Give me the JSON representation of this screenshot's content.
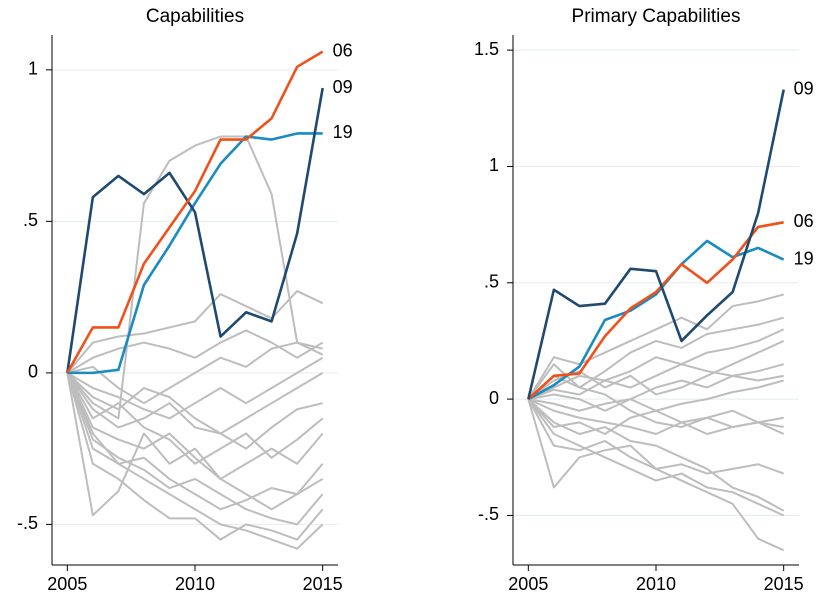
{
  "chart_data": [
    {
      "type": "line",
      "title": "Capabilities",
      "x": [
        2005,
        2006,
        2007,
        2008,
        2009,
        2010,
        2011,
        2012,
        2013,
        2014,
        2015
      ],
      "xlim": [
        2004.4,
        2015.6
      ],
      "xticks": [
        2005,
        2010,
        2015
      ],
      "ylim": [
        -0.634,
        1.115
      ],
      "yticks": [
        {
          "value": -0.5,
          "label": "-.5"
        },
        0,
        {
          "value": 0.5,
          "label": ".5"
        },
        1
      ],
      "grid": true,
      "series": [
        {
          "color": "#bdbdbd",
          "values": [
            0,
            -0.47,
            -0.39,
            -0.2,
            -0.3,
            -0.25,
            -0.35,
            -0.4,
            -0.45,
            -0.4,
            -0.35
          ]
        },
        {
          "color": "#bdbdbd",
          "values": [
            0,
            -0.1,
            -0.15,
            0.56,
            0.7,
            0.75,
            0.78,
            0.78,
            0.59,
            0.1,
            0.06
          ]
        },
        {
          "color": "#bdbdbd",
          "values": [
            0,
            0.1,
            0.12,
            0.13,
            0.15,
            0.17,
            0.26,
            0.22,
            0.18,
            0.27,
            0.23
          ]
        },
        {
          "color": "#bdbdbd",
          "values": [
            0,
            -0.2,
            -0.3,
            -0.35,
            -0.4,
            -0.45,
            -0.5,
            -0.52,
            -0.55,
            -0.58,
            -0.5
          ]
        },
        {
          "color": "#bdbdbd",
          "values": [
            0,
            -0.15,
            -0.1,
            -0.18,
            -0.22,
            -0.3,
            -0.25,
            -0.2,
            -0.28,
            -0.22,
            -0.15
          ]
        },
        {
          "color": "#bdbdbd",
          "values": [
            0,
            0.05,
            0.08,
            0.1,
            0.08,
            0.05,
            0.1,
            0.14,
            0.1,
            0.05,
            0.1
          ]
        },
        {
          "color": "#bdbdbd",
          "values": [
            0,
            -0.05,
            -0.08,
            -0.12,
            -0.15,
            -0.1,
            -0.05,
            -0.1,
            -0.05,
            0,
            0.05
          ]
        },
        {
          "color": "#bdbdbd",
          "values": [
            0,
            -0.25,
            -0.3,
            -0.28,
            -0.35,
            -0.4,
            -0.45,
            -0.42,
            -0.38,
            -0.4,
            -0.3
          ]
        },
        {
          "color": "#bdbdbd",
          "values": [
            0,
            -0.12,
            -0.18,
            -0.15,
            -0.1,
            -0.18,
            -0.2,
            -0.15,
            -0.1,
            -0.05,
            0
          ]
        },
        {
          "color": "#bdbdbd",
          "values": [
            0,
            -0.3,
            -0.35,
            -0.42,
            -0.48,
            -0.48,
            -0.55,
            -0.5,
            -0.52,
            -0.55,
            -0.45
          ]
        },
        {
          "color": "#bdbdbd",
          "values": [
            0,
            0.02,
            -0.05,
            -0.1,
            -0.05,
            0,
            0.05,
            0.02,
            0.08,
            0.1,
            0.08
          ]
        },
        {
          "color": "#bdbdbd",
          "values": [
            0,
            -0.18,
            -0.22,
            -0.25,
            -0.2,
            -0.28,
            -0.35,
            -0.3,
            -0.25,
            -0.3,
            -0.2
          ]
        },
        {
          "color": "#bdbdbd",
          "values": [
            0,
            -0.08,
            -0.12,
            -0.05,
            -0.08,
            -0.15,
            -0.2,
            -0.25,
            -0.18,
            -0.12,
            -0.1
          ]
        },
        {
          "color": "#bdbdbd",
          "values": [
            0,
            -0.22,
            -0.28,
            -0.32,
            -0.38,
            -0.35,
            -0.4,
            -0.45,
            -0.48,
            -0.5,
            -0.4
          ]
        },
        {
          "name": "19",
          "color": "#1a8cbf",
          "values": [
            0,
            0,
            0.01,
            0.29,
            0.42,
            0.56,
            0.69,
            0.78,
            0.77,
            0.79,
            0.79
          ]
        },
        {
          "name": "09",
          "color": "#1f4a70",
          "values": [
            0,
            0.58,
            0.65,
            0.59,
            0.66,
            0.53,
            0.12,
            0.2,
            0.17,
            0.46,
            0.94
          ]
        },
        {
          "name": "06",
          "color": "#f0511b",
          "values": [
            0,
            0.15,
            0.15,
            0.36,
            0.48,
            0.6,
            0.77,
            0.77,
            0.84,
            1.01,
            1.06
          ]
        }
      ]
    },
    {
      "type": "line",
      "title": "Primary Capabilities",
      "x": [
        2005,
        2006,
        2007,
        2008,
        2009,
        2010,
        2011,
        2012,
        2013,
        2014,
        2015
      ],
      "xlim": [
        2004.4,
        2015.6
      ],
      "xticks": [
        2005,
        2010,
        2015
      ],
      "ylim": [
        -0.713,
        1.565
      ],
      "yticks": [
        {
          "value": -0.5,
          "label": "-.5"
        },
        0,
        {
          "value": 0.5,
          "label": ".5"
        },
        1,
        1.5
      ],
      "grid": true,
      "series": [
        {
          "color": "#bdbdbd",
          "values": [
            0,
            -0.38,
            -0.25,
            -0.22,
            -0.2,
            -0.3,
            -0.35,
            -0.4,
            -0.45,
            -0.6,
            -0.65
          ]
        },
        {
          "color": "#bdbdbd",
          "values": [
            0,
            0.18,
            0.15,
            0.2,
            0.25,
            0.3,
            0.35,
            0.3,
            0.4,
            0.42,
            0.45
          ]
        },
        {
          "color": "#bdbdbd",
          "values": [
            0,
            -0.1,
            -0.15,
            -0.12,
            -0.18,
            -0.2,
            -0.25,
            -0.3,
            -0.38,
            -0.42,
            -0.48
          ]
        },
        {
          "color": "#bdbdbd",
          "values": [
            0,
            0.05,
            0.1,
            0.08,
            0.05,
            0.1,
            0.15,
            0.12,
            0.1,
            0.08,
            0.1
          ]
        },
        {
          "color": "#bdbdbd",
          "values": [
            0,
            -0.05,
            -0.08,
            -0.1,
            -0.12,
            -0.15,
            -0.1,
            -0.08,
            -0.12,
            -0.1,
            -0.12
          ]
        },
        {
          "color": "#bdbdbd",
          "values": [
            0,
            0.1,
            0.05,
            0.12,
            0.2,
            0.25,
            0.22,
            0.28,
            0.3,
            0.32,
            0.35
          ]
        },
        {
          "color": "#bdbdbd",
          "values": [
            0,
            -0.2,
            -0.22,
            -0.18,
            -0.25,
            -0.3,
            -0.28,
            -0.32,
            -0.3,
            -0.28,
            -0.32
          ]
        },
        {
          "color": "#bdbdbd",
          "values": [
            0,
            0.02,
            0,
            -0.05,
            0,
            0.05,
            0.08,
            0.05,
            0.1,
            0.12,
            0.15
          ]
        },
        {
          "color": "#bdbdbd",
          "values": [
            0,
            -0.12,
            -0.1,
            -0.15,
            -0.08,
            -0.05,
            -0.1,
            -0.15,
            -0.12,
            -0.1,
            -0.08
          ]
        },
        {
          "color": "#bdbdbd",
          "values": [
            0,
            0.08,
            0.12,
            0.05,
            0.1,
            0.02,
            0.05,
            0.1,
            0.15,
            0.2,
            0.25
          ]
        },
        {
          "color": "#bdbdbd",
          "values": [
            0,
            -0.15,
            -0.2,
            -0.25,
            -0.3,
            -0.35,
            -0.32,
            -0.38,
            -0.4,
            -0.45,
            -0.5
          ]
        },
        {
          "color": "#bdbdbd",
          "values": [
            0,
            0.04,
            0.02,
            0.08,
            0.12,
            0.18,
            0.15,
            0.2,
            0.22,
            0.25,
            0.3
          ]
        },
        {
          "color": "#bdbdbd",
          "values": [
            0,
            -0.02,
            -0.05,
            -0.02,
            0,
            -0.05,
            -0.02,
            0,
            0.03,
            0.05,
            0.08
          ]
        },
        {
          "color": "#bdbdbd",
          "values": [
            0,
            0.15,
            0.05,
            0.02,
            -0.05,
            -0.1,
            -0.12,
            -0.08,
            -0.05,
            -0.1,
            -0.15
          ]
        },
        {
          "name": "19",
          "color": "#1a8cbf",
          "values": [
            0,
            0.06,
            0.14,
            0.34,
            0.38,
            0.45,
            0.58,
            0.68,
            0.61,
            0.65,
            0.6
          ]
        },
        {
          "name": "06",
          "color": "#f0511b",
          "values": [
            0,
            0.1,
            0.11,
            0.27,
            0.39,
            0.46,
            0.58,
            0.5,
            0.6,
            0.74,
            0.76
          ]
        },
        {
          "name": "09",
          "color": "#1f4a70",
          "values": [
            0,
            0.47,
            0.4,
            0.41,
            0.56,
            0.55,
            0.25,
            0.36,
            0.46,
            0.8,
            1.33
          ]
        }
      ]
    }
  ]
}
